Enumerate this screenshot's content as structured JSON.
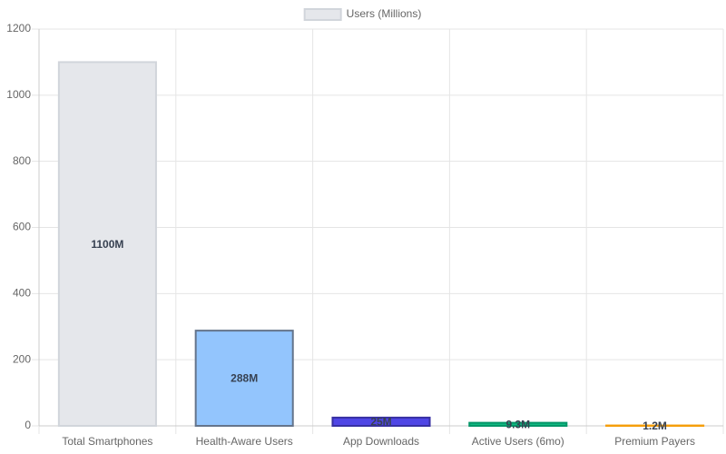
{
  "chart_data": {
    "type": "bar",
    "categories": [
      "Total Smartphones",
      "Health-Aware Users",
      "App Downloads",
      "Active Users (6mo)",
      "Premium Payers"
    ],
    "series": [
      {
        "name": "Users (Millions)",
        "colors": [
          "#e5e7eb",
          "#93c5fd",
          "#4f46e5",
          "#10b981",
          "#fbbf24"
        ],
        "border_colors": [
          "#d1d5db",
          "#64748b",
          "#3730a3",
          "#059669",
          "#f59e0b"
        ],
        "values": [
          1100,
          288,
          25,
          9.3,
          1.2
        ],
        "value_labels": [
          "1100M",
          "288M",
          "25M",
          "9.3M",
          "1.2M"
        ]
      }
    ],
    "ylim": [
      0,
      1200
    ],
    "yticks": [
      0,
      200,
      400,
      600,
      800,
      1000,
      1200
    ],
    "grid": true,
    "legend": "top"
  }
}
